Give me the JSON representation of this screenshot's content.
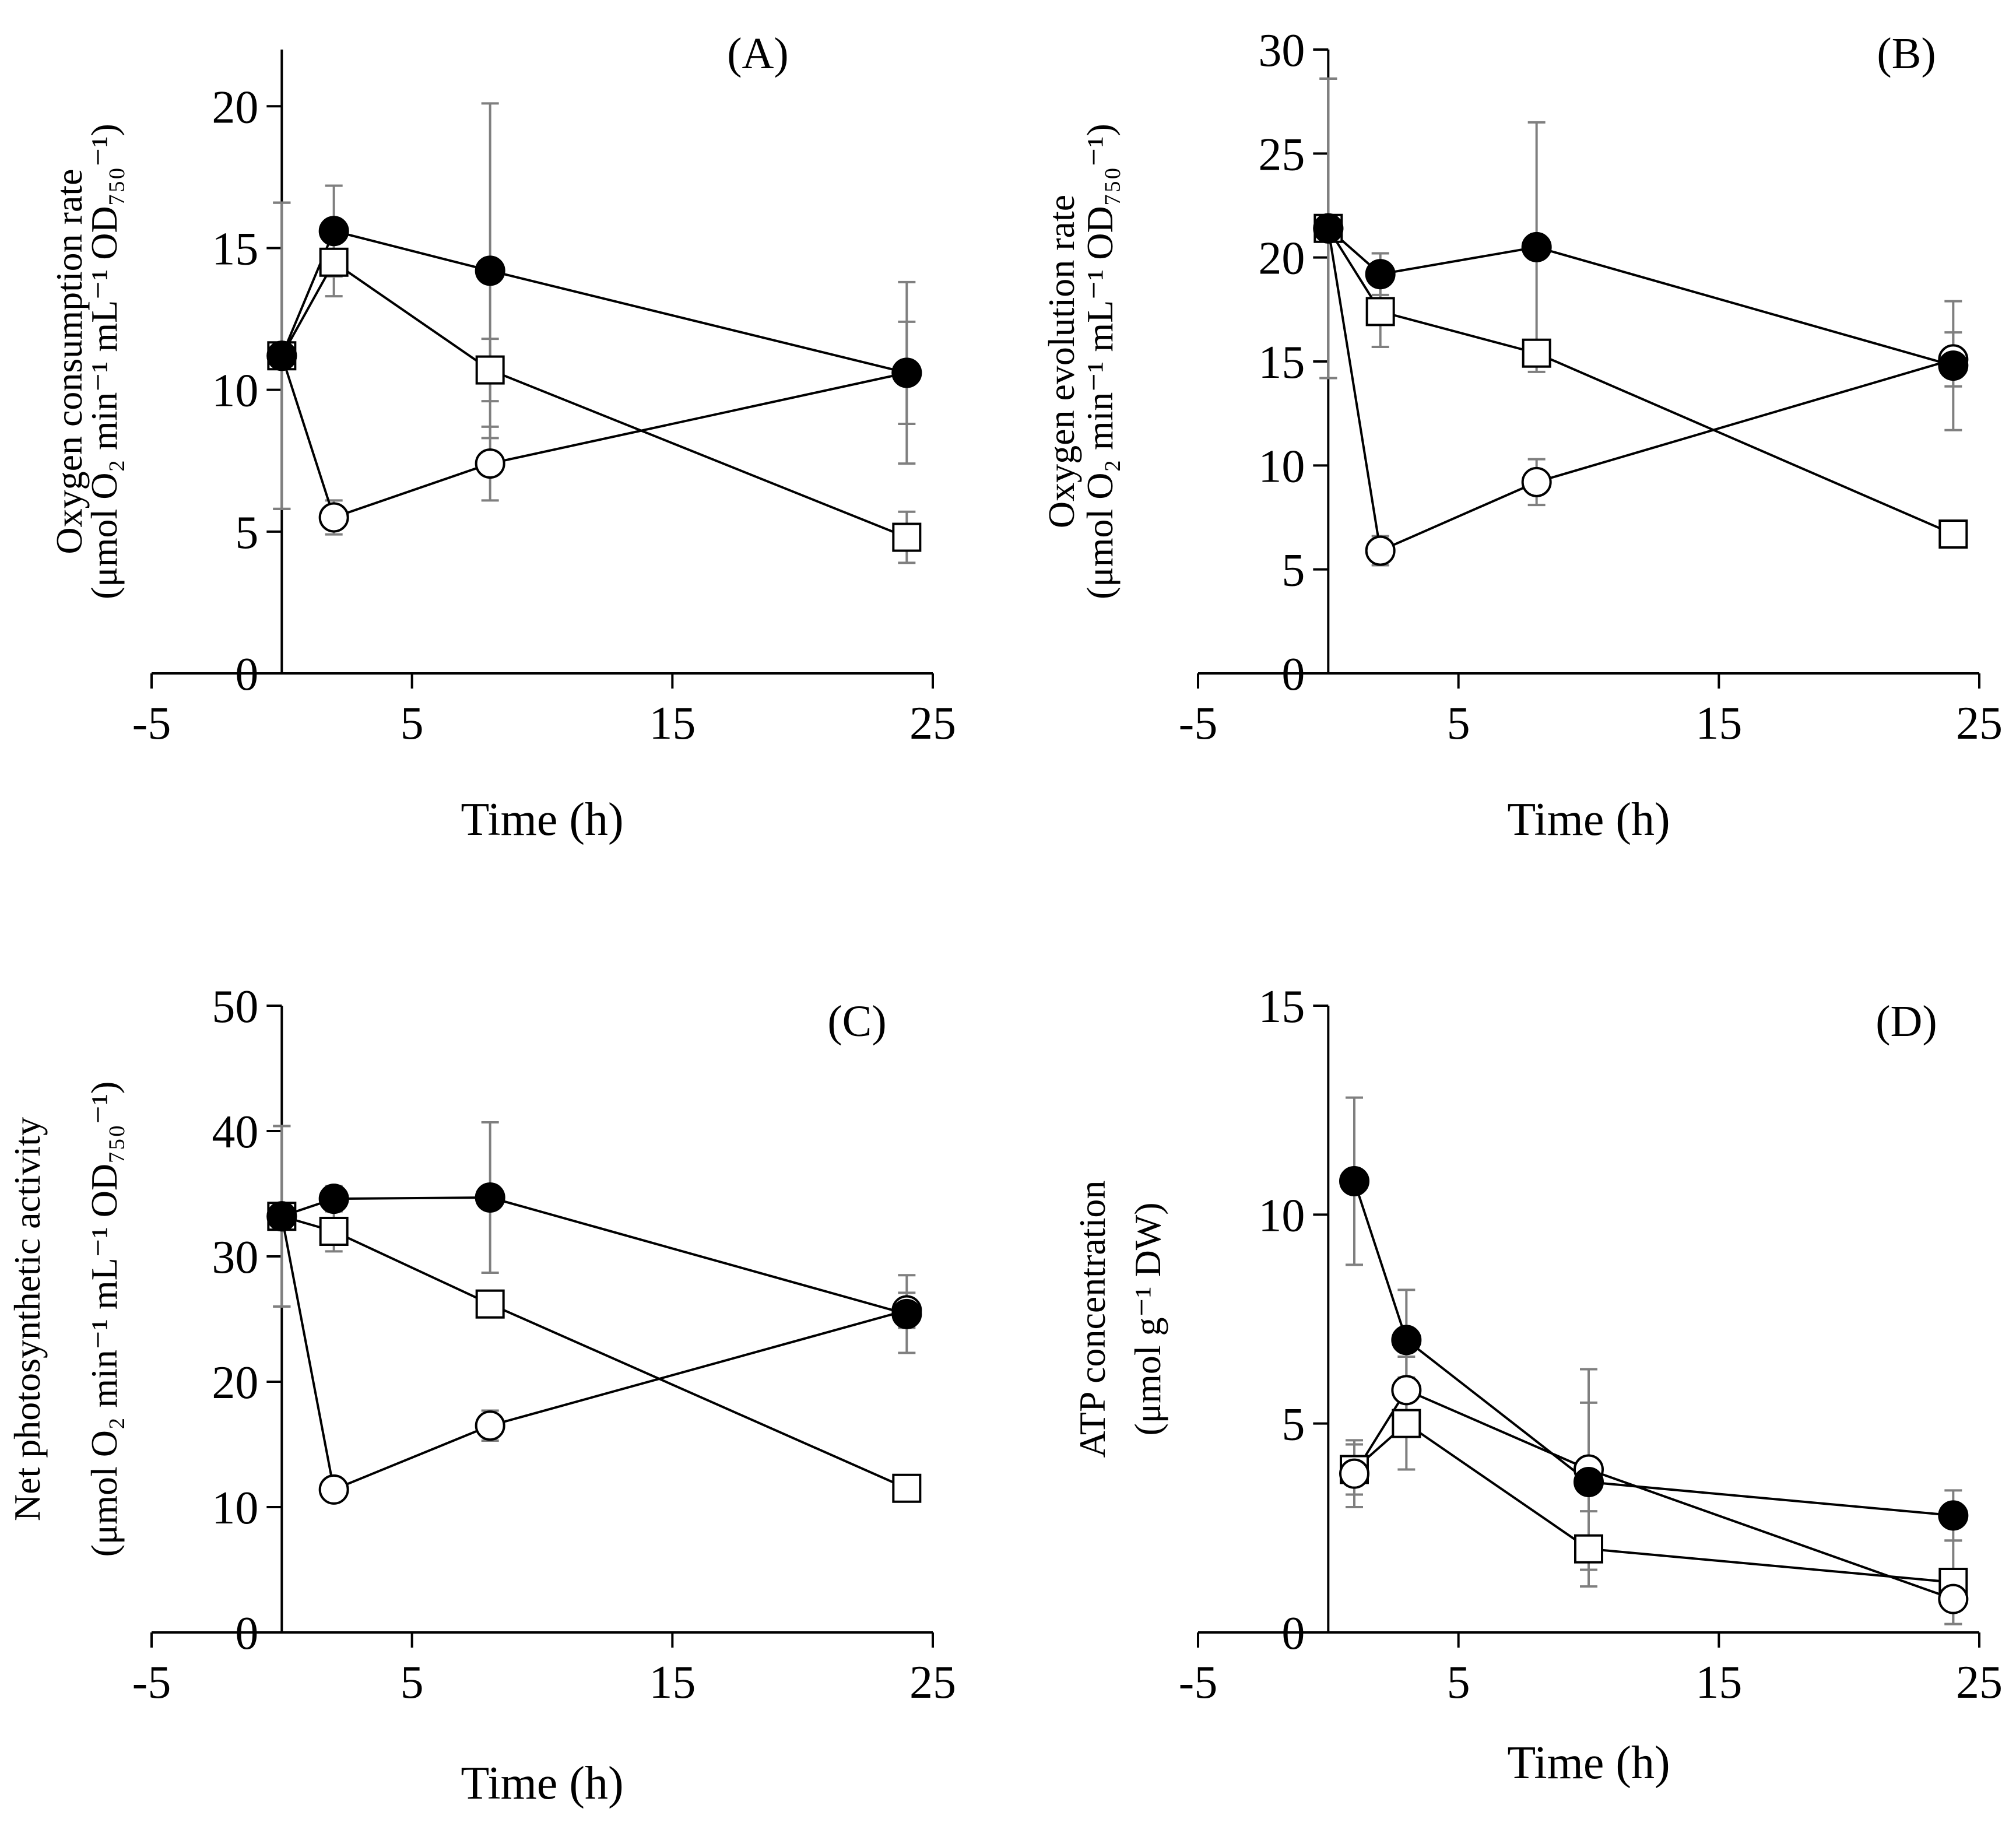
{
  "chart_data": [
    {
      "panel": "(A)",
      "type": "line",
      "xlabel": "Time (h)",
      "ylabel_lines": [
        "Oxygen consumption rate",
        "(μmol O₂ min⁻¹ mL⁻¹ OD₇₅₀⁻¹)"
      ],
      "xlim": [
        -5,
        25
      ],
      "ylim": [
        0,
        22
      ],
      "xticks": [
        -5,
        5,
        15,
        25
      ],
      "xtick_labels": [
        "-5",
        "5",
        "15",
        "25"
      ],
      "yticks": [
        0,
        5,
        10,
        15,
        20
      ],
      "ytick_labels": [
        "0",
        "5",
        "10",
        "15",
        "20"
      ],
      "grid": false,
      "series": [
        {
          "marker": "filled-circle",
          "x": [
            0,
            2,
            8,
            24
          ],
          "y": [
            11.2,
            15.6,
            14.2,
            10.6
          ],
          "err": [
            5.4,
            1.6,
            5.9,
            1.8
          ]
        },
        {
          "marker": "open-square",
          "x": [
            0,
            2,
            8,
            24
          ],
          "y": [
            11.2,
            14.5,
            10.7,
            4.8
          ],
          "err": [
            5.4,
            1.2,
            1.1,
            0.9
          ]
        },
        {
          "marker": "open-circle",
          "x": [
            0,
            2,
            8,
            24
          ],
          "y": [
            11.2,
            5.5,
            7.4,
            10.6
          ],
          "err": [
            5.4,
            0.6,
            1.3,
            3.2
          ]
        }
      ]
    },
    {
      "panel": "(B)",
      "type": "line",
      "xlabel": "Time (h)",
      "ylabel_lines": [
        "Oxygen evolution rate",
        "(μmol O₂ min⁻¹ mL⁻¹ OD₇₅₀⁻¹)"
      ],
      "xlim": [
        -5,
        25
      ],
      "ylim": [
        0,
        30
      ],
      "xticks": [
        -5,
        5,
        15,
        25
      ],
      "xtick_labels": [
        "-5",
        "5",
        "15",
        "25"
      ],
      "yticks": [
        0,
        5,
        10,
        15,
        20,
        25,
        30
      ],
      "ytick_labels": [
        "0",
        "5",
        "10",
        "15",
        "20",
        "25",
        "30"
      ],
      "grid": false,
      "series": [
        {
          "marker": "filled-circle",
          "x": [
            0,
            2,
            8,
            24
          ],
          "y": [
            21.4,
            19.2,
            20.5,
            14.8
          ],
          "err": [
            7.2,
            1.0,
            6.0,
            3.1
          ]
        },
        {
          "marker": "open-square",
          "x": [
            0,
            2,
            8,
            24
          ],
          "y": [
            21.4,
            17.4,
            15.4,
            6.7
          ],
          "err": [
            7.2,
            1.7,
            0.5,
            0.3
          ]
        },
        {
          "marker": "open-circle",
          "x": [
            0,
            2,
            8,
            24
          ],
          "y": [
            21.4,
            5.9,
            9.2,
            15.1
          ],
          "err": [
            7.2,
            0.7,
            1.1,
            1.3
          ]
        }
      ]
    },
    {
      "panel": "(C)",
      "type": "line",
      "xlabel": "Time (h)",
      "ylabel_lines": [
        "Net photosynthetic activity",
        "(μmol O₂ min⁻¹ mL⁻¹ OD₇₅₀⁻¹)"
      ],
      "xlim": [
        -5,
        25
      ],
      "ylim": [
        0,
        50
      ],
      "xticks": [
        -5,
        5,
        15,
        25
      ],
      "xtick_labels": [
        "-5",
        "5",
        "15",
        "25"
      ],
      "yticks": [
        0,
        10,
        20,
        30,
        40,
        50
      ],
      "ytick_labels": [
        "0",
        "10",
        "20",
        "30",
        "40",
        "50"
      ],
      "grid": false,
      "series": [
        {
          "marker": "filled-circle",
          "x": [
            0,
            2,
            8,
            24
          ],
          "y": [
            33.2,
            34.6,
            34.7,
            25.4
          ],
          "err": [
            7.2,
            1.0,
            6.0,
            3.1
          ]
        },
        {
          "marker": "open-square",
          "x": [
            0,
            2,
            8,
            24
          ],
          "y": [
            33.2,
            32.0,
            26.2,
            11.5
          ],
          "err": [
            7.2,
            1.6,
            0.7,
            0.3
          ]
        },
        {
          "marker": "open-circle",
          "x": [
            0,
            2,
            8,
            24
          ],
          "y": [
            33.2,
            11.4,
            16.5,
            25.7
          ],
          "err": [
            7.2,
            0.5,
            1.2,
            1.4
          ]
        }
      ]
    },
    {
      "panel": "(D)",
      "type": "line",
      "xlabel": "Time (h)",
      "ylabel_lines": [
        "ATP concentration",
        "(μmol g⁻¹ DW)"
      ],
      "xlim": [
        -5,
        25
      ],
      "ylim": [
        0,
        15
      ],
      "xticks": [
        -5,
        5,
        15,
        25
      ],
      "xtick_labels": [
        "-5",
        "5",
        "15",
        "25"
      ],
      "yticks": [
        0,
        5,
        10,
        15
      ],
      "ytick_labels": [
        "0",
        "5",
        "10",
        "15"
      ],
      "grid": false,
      "series": [
        {
          "marker": "filled-circle",
          "x": [
            1,
            3,
            10,
            24
          ],
          "y": [
            10.8,
            7.0,
            3.6,
            2.8
          ],
          "err": [
            2.0,
            1.2,
            1.9,
            0.6
          ]
        },
        {
          "marker": "open-square",
          "x": [
            1,
            3,
            10,
            24
          ],
          "y": [
            3.9,
            5.0,
            2.0,
            1.2
          ],
          "err": [
            0.6,
            1.1,
            0.9,
            1.0
          ]
        },
        {
          "marker": "open-circle",
          "x": [
            1,
            3,
            10,
            24
          ],
          "y": [
            3.8,
            5.8,
            3.9,
            0.8
          ],
          "err": [
            0.8,
            0.8,
            2.4,
            0.6
          ]
        }
      ]
    }
  ]
}
